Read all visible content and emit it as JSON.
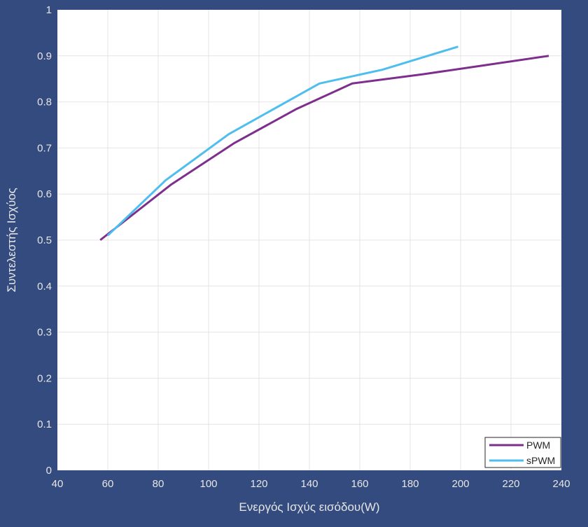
{
  "chart_data": {
    "type": "line",
    "xlabel": "Ενεργός Ισχύς εισόδου(W)",
    "ylabel": "Συντελεστής Ισχύος",
    "xlim": [
      40,
      240
    ],
    "ylim": [
      0,
      1
    ],
    "x_ticks": [
      40,
      60,
      80,
      100,
      120,
      140,
      160,
      180,
      200,
      220,
      240
    ],
    "y_ticks": [
      0,
      0.1,
      0.2,
      0.3,
      0.4,
      0.5,
      0.6,
      0.7,
      0.8,
      0.9,
      1
    ],
    "y_tick_labels": [
      "0",
      "0.1",
      "0.2",
      "0.3",
      "0.4",
      "0.5",
      "0.6",
      "0.7",
      "0.8",
      "0.9",
      "1"
    ],
    "grid": true,
    "legend_position": "bottom-right",
    "series": [
      {
        "name": "PWM",
        "color": "#7e2f8e",
        "x": [
          57,
          85,
          110,
          135,
          157,
          185,
          210,
          235
        ],
        "y": [
          0.5,
          0.62,
          0.71,
          0.785,
          0.84,
          0.86,
          0.88,
          0.9
        ]
      },
      {
        "name": "sPWM",
        "color": "#4dbeee",
        "x": [
          60,
          83,
          108,
          144,
          169,
          184,
          199
        ],
        "y": [
          0.51,
          0.63,
          0.73,
          0.84,
          0.87,
          0.895,
          0.92
        ]
      }
    ]
  },
  "colors": {
    "figure_background": "#344b7f",
    "plot_background": "#ffffff",
    "axis_text": "#e6e6e6",
    "grid": "#e4e4e4"
  }
}
